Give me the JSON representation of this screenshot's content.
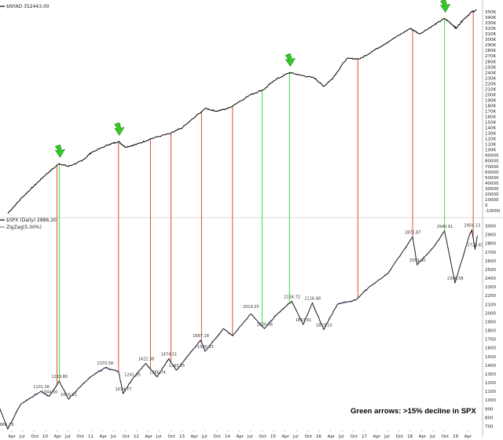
{
  "chart_data": [
    {
      "type": "line",
      "panel": "top",
      "header": "$NYAD 352443.00",
      "series": [
        {
          "name": "$NYAD",
          "color": "#000000"
        }
      ],
      "ylim": [
        -20000,
        360000
      ],
      "y_ticks": [
        "-10000",
        "0",
        "10000",
        "20000",
        "30000",
        "40000",
        "50000",
        "60000",
        "70000",
        "80000",
        "90000",
        "100K",
        "110K",
        "120K",
        "130K",
        "140K",
        "150K",
        "160K",
        "170K",
        "180K",
        "190K",
        "200K",
        "210K",
        "220K",
        "230K",
        "240K",
        "250K",
        "260K",
        "270K",
        "280K",
        "290K",
        "300K",
        "310K",
        "320K",
        "330K",
        "340K",
        "350K"
      ],
      "points": [
        {
          "x": 2009.17,
          "y": -15000
        },
        {
          "x": 2009.5,
          "y": 15000
        },
        {
          "x": 2009.75,
          "y": 35000
        },
        {
          "x": 2010.0,
          "y": 55000
        },
        {
          "x": 2010.3,
          "y": 75000
        },
        {
          "x": 2010.5,
          "y": 70000
        },
        {
          "x": 2010.8,
          "y": 80000
        },
        {
          "x": 2011.0,
          "y": 95000
        },
        {
          "x": 2011.4,
          "y": 110000
        },
        {
          "x": 2011.6,
          "y": 115000
        },
        {
          "x": 2011.75,
          "y": 105000
        },
        {
          "x": 2012.0,
          "y": 110000
        },
        {
          "x": 2012.3,
          "y": 120000
        },
        {
          "x": 2012.75,
          "y": 130000
        },
        {
          "x": 2013.0,
          "y": 140000
        },
        {
          "x": 2013.5,
          "y": 175000
        },
        {
          "x": 2013.75,
          "y": 170000
        },
        {
          "x": 2014.0,
          "y": 175000
        },
        {
          "x": 2014.5,
          "y": 200000
        },
        {
          "x": 2014.8,
          "y": 210000
        },
        {
          "x": 2015.0,
          "y": 225000
        },
        {
          "x": 2015.35,
          "y": 240000
        },
        {
          "x": 2015.6,
          "y": 235000
        },
        {
          "x": 2015.9,
          "y": 230000
        },
        {
          "x": 2016.1,
          "y": 215000
        },
        {
          "x": 2016.3,
          "y": 230000
        },
        {
          "x": 2016.6,
          "y": 265000
        },
        {
          "x": 2016.9,
          "y": 265000
        },
        {
          "x": 2017.2,
          "y": 280000
        },
        {
          "x": 2017.6,
          "y": 300000
        },
        {
          "x": 2018.0,
          "y": 320000
        },
        {
          "x": 2018.2,
          "y": 310000
        },
        {
          "x": 2018.5,
          "y": 325000
        },
        {
          "x": 2018.75,
          "y": 338000
        },
        {
          "x": 2018.95,
          "y": 325000
        },
        {
          "x": 2019.0,
          "y": 320000
        },
        {
          "x": 2019.15,
          "y": 335000
        },
        {
          "x": 2019.35,
          "y": 350000
        },
        {
          "x": 2019.45,
          "y": 352443
        }
      ],
      "arrows": [
        2010.3,
        2011.6,
        2015.35,
        2018.75
      ]
    },
    {
      "type": "line",
      "panel": "bottom",
      "header": "$SPX (Daily) 2886.20",
      "subheader": "ZigZag(5.00%)",
      "series": [
        {
          "name": "$SPX",
          "color": "#000000"
        },
        {
          "name": "ZigZag(5.00%)",
          "color": "#6060a0"
        }
      ],
      "ylim": [
        650,
        3050
      ],
      "y_ticks": [
        "700",
        "800",
        "900",
        "1000",
        "1100",
        "1200",
        "1300",
        "1400",
        "1500",
        "1600",
        "1700",
        "1800",
        "1900",
        "2000",
        "2100",
        "2200",
        "2300",
        "2400",
        "2500",
        "2600",
        "2700",
        "2800",
        "2900",
        "3000"
      ],
      "points": [
        {
          "x": 2009.0,
          "y": 900
        },
        {
          "x": 2009.17,
          "y": 666.79
        },
        {
          "x": 2009.45,
          "y": 950
        },
        {
          "x": 2009.6,
          "y": 1000
        },
        {
          "x": 2009.9,
          "y": 1101.36
        },
        {
          "x": 2010.08,
          "y": 1044.5
        },
        {
          "x": 2010.3,
          "y": 1217.28
        },
        {
          "x": 2010.5,
          "y": 1010.91
        },
        {
          "x": 2010.75,
          "y": 1150
        },
        {
          "x": 2011.0,
          "y": 1270
        },
        {
          "x": 2011.3,
          "y": 1370.58
        },
        {
          "x": 2011.6,
          "y": 1330
        },
        {
          "x": 2011.7,
          "y": 1074.77
        },
        {
          "x": 2011.9,
          "y": 1241.05
        },
        {
          "x": 2012.2,
          "y": 1422.38
        },
        {
          "x": 2012.45,
          "y": 1266.74
        },
        {
          "x": 2012.7,
          "y": 1474.51
        },
        {
          "x": 2012.87,
          "y": 1343.35
        },
        {
          "x": 2013.4,
          "y": 1687.18
        },
        {
          "x": 2013.5,
          "y": 1560.33
        },
        {
          "x": 2013.9,
          "y": 1820
        },
        {
          "x": 2014.1,
          "y": 1737.92
        },
        {
          "x": 2014.5,
          "y": 1990
        },
        {
          "x": 2014.8,
          "y": 1820.66
        },
        {
          "x": 2015.1,
          "y": 2000
        },
        {
          "x": 2015.4,
          "y": 2134.72
        },
        {
          "x": 2015.65,
          "y": 1867.61
        },
        {
          "x": 2015.85,
          "y": 2116.48
        },
        {
          "x": 2016.1,
          "y": 1810.1
        },
        {
          "x": 2016.4,
          "y": 2100
        },
        {
          "x": 2016.8,
          "y": 2150
        },
        {
          "x": 2017.1,
          "y": 2300
        },
        {
          "x": 2017.5,
          "y": 2450
        },
        {
          "x": 2018.05,
          "y": 2872.87
        },
        {
          "x": 2018.15,
          "y": 2553.8
        },
        {
          "x": 2018.5,
          "y": 2750
        },
        {
          "x": 2018.75,
          "y": 2940.91
        },
        {
          "x": 2018.98,
          "y": 2346.58
        },
        {
          "x": 2019.3,
          "y": 2900
        },
        {
          "x": 2019.35,
          "y": 2954.13
        },
        {
          "x": 2019.42,
          "y": 2728.81
        },
        {
          "x": 2019.47,
          "y": 2886.2
        }
      ],
      "labels": [
        {
          "text": "666.79",
          "x": 2009.17,
          "y": 666.79
        },
        {
          "text": "1101.36",
          "x": 2009.9,
          "y": 1101.36
        },
        {
          "text": "1044.50",
          "x": 2010.08,
          "y": 1044.5
        },
        {
          "text": "1219.80",
          "x": 2010.3,
          "y": 1219.8
        },
        {
          "text": "1010.91",
          "x": 2010.5,
          "y": 1010.91
        },
        {
          "text": "1370.58",
          "x": 2011.3,
          "y": 1370.58
        },
        {
          "text": "1074.77",
          "x": 2011.7,
          "y": 1074.77
        },
        {
          "text": "1241.05",
          "x": 2011.9,
          "y": 1241.05
        },
        {
          "text": "1422.38",
          "x": 2012.2,
          "y": 1422.38
        },
        {
          "text": "1266.74",
          "x": 2012.45,
          "y": 1266.74
        },
        {
          "text": "1474.51",
          "x": 2012.7,
          "y": 1474.51
        },
        {
          "text": "1343.35",
          "x": 2012.87,
          "y": 1343.35
        },
        {
          "text": "1687.18",
          "x": 2013.4,
          "y": 1687.18
        },
        {
          "text": "1560.33",
          "x": 2013.5,
          "y": 1560.33
        },
        {
          "text": "2019.25",
          "x": 2014.5,
          "y": 2019.25
        },
        {
          "text": "1820.66",
          "x": 2014.8,
          "y": 1820.66
        },
        {
          "text": "2134.72",
          "x": 2015.4,
          "y": 2134.72
        },
        {
          "text": "2116.48",
          "x": 2015.85,
          "y": 2116.48
        },
        {
          "text": "1867.61",
          "x": 2015.65,
          "y": 1867.61
        },
        {
          "text": "1810.10",
          "x": 2016.1,
          "y": 1810.1
        },
        {
          "text": "2872.87",
          "x": 2018.05,
          "y": 2872.87
        },
        {
          "text": "2553.80",
          "x": 2018.15,
          "y": 2553.8
        },
        {
          "text": "2940.91",
          "x": 2018.75,
          "y": 2940.91
        },
        {
          "text": "2346.58",
          "x": 2018.98,
          "y": 2346.58
        },
        {
          "text": "2954.13",
          "x": 2019.35,
          "y": 2954.13
        },
        {
          "text": "2728.81",
          "x": 2019.42,
          "y": 2728.81
        }
      ]
    }
  ],
  "vertical_lines": [
    {
      "x": 2010.25,
      "color": "#e05030"
    },
    {
      "x": 2010.3,
      "color": "#40dd40"
    },
    {
      "x": 2011.6,
      "color": "#e05030"
    },
    {
      "x": 2012.3,
      "color": "#e05030"
    },
    {
      "x": 2012.75,
      "color": "#e05030"
    },
    {
      "x": 2013.42,
      "color": "#e05030"
    },
    {
      "x": 2014.1,
      "color": "#e05030"
    },
    {
      "x": 2014.75,
      "color": "#40dd40"
    },
    {
      "x": 2015.35,
      "color": "#40dd40"
    },
    {
      "x": 2016.85,
      "color": "#e05030"
    },
    {
      "x": 2018.05,
      "color": "#e05030"
    },
    {
      "x": 2018.75,
      "color": "#40dd40"
    },
    {
      "x": 2019.38,
      "color": "#e05030"
    }
  ],
  "x_axis": {
    "xlim": [
      2009.0,
      2019.55
    ],
    "ticks": [
      {
        "label": "Apr",
        "x": 2009.25
      },
      {
        "label": "Jul",
        "x": 2009.5
      },
      {
        "label": "Oct",
        "x": 2009.75
      },
      {
        "label": "10",
        "x": 2010.0
      },
      {
        "label": "Apr",
        "x": 2010.25
      },
      {
        "label": "Jul",
        "x": 2010.5
      },
      {
        "label": "Oct",
        "x": 2010.75
      },
      {
        "label": "11",
        "x": 2011.0
      },
      {
        "label": "Apr",
        "x": 2011.25
      },
      {
        "label": "Jul",
        "x": 2011.5
      },
      {
        "label": "Oct",
        "x": 2011.75
      },
      {
        "label": "12",
        "x": 2012.0
      },
      {
        "label": "Apr",
        "x": 2012.25
      },
      {
        "label": "Jul",
        "x": 2012.5
      },
      {
        "label": "Oct",
        "x": 2012.75
      },
      {
        "label": "13",
        "x": 2013.0
      },
      {
        "label": "Apr",
        "x": 2013.25
      },
      {
        "label": "Jul",
        "x": 2013.5
      },
      {
        "label": "Oct",
        "x": 2013.75
      },
      {
        "label": "14",
        "x": 2014.0
      },
      {
        "label": "Apr",
        "x": 2014.25
      },
      {
        "label": "Jul",
        "x": 2014.5
      },
      {
        "label": "Oct",
        "x": 2014.75
      },
      {
        "label": "15",
        "x": 2015.0
      },
      {
        "label": "Apr",
        "x": 2015.25
      },
      {
        "label": "Jul",
        "x": 2015.5
      },
      {
        "label": "Oct",
        "x": 2015.75
      },
      {
        "label": "16",
        "x": 2016.0
      },
      {
        "label": "Apr",
        "x": 2016.25
      },
      {
        "label": "Jul",
        "x": 2016.5
      },
      {
        "label": "Oct",
        "x": 2016.75
      },
      {
        "label": "17",
        "x": 2017.0
      },
      {
        "label": "Apr",
        "x": 2017.25
      },
      {
        "label": "Jul",
        "x": 2017.5
      },
      {
        "label": "Oct",
        "x": 2017.75
      },
      {
        "label": "18",
        "x": 2018.0
      },
      {
        "label": "Apr",
        "x": 2018.25
      },
      {
        "label": "Jul",
        "x": 2018.5
      },
      {
        "label": "Oct",
        "x": 2018.75
      },
      {
        "label": "19",
        "x": 2019.0
      },
      {
        "label": "Apr",
        "x": 2019.25
      }
    ]
  },
  "caption": "Green arrows: >15% decline in SPX",
  "colors": {
    "red_line": "#e05030",
    "green_line": "#40dd40",
    "arrow": "#33cc22",
    "zigzag": "#6060a0"
  }
}
